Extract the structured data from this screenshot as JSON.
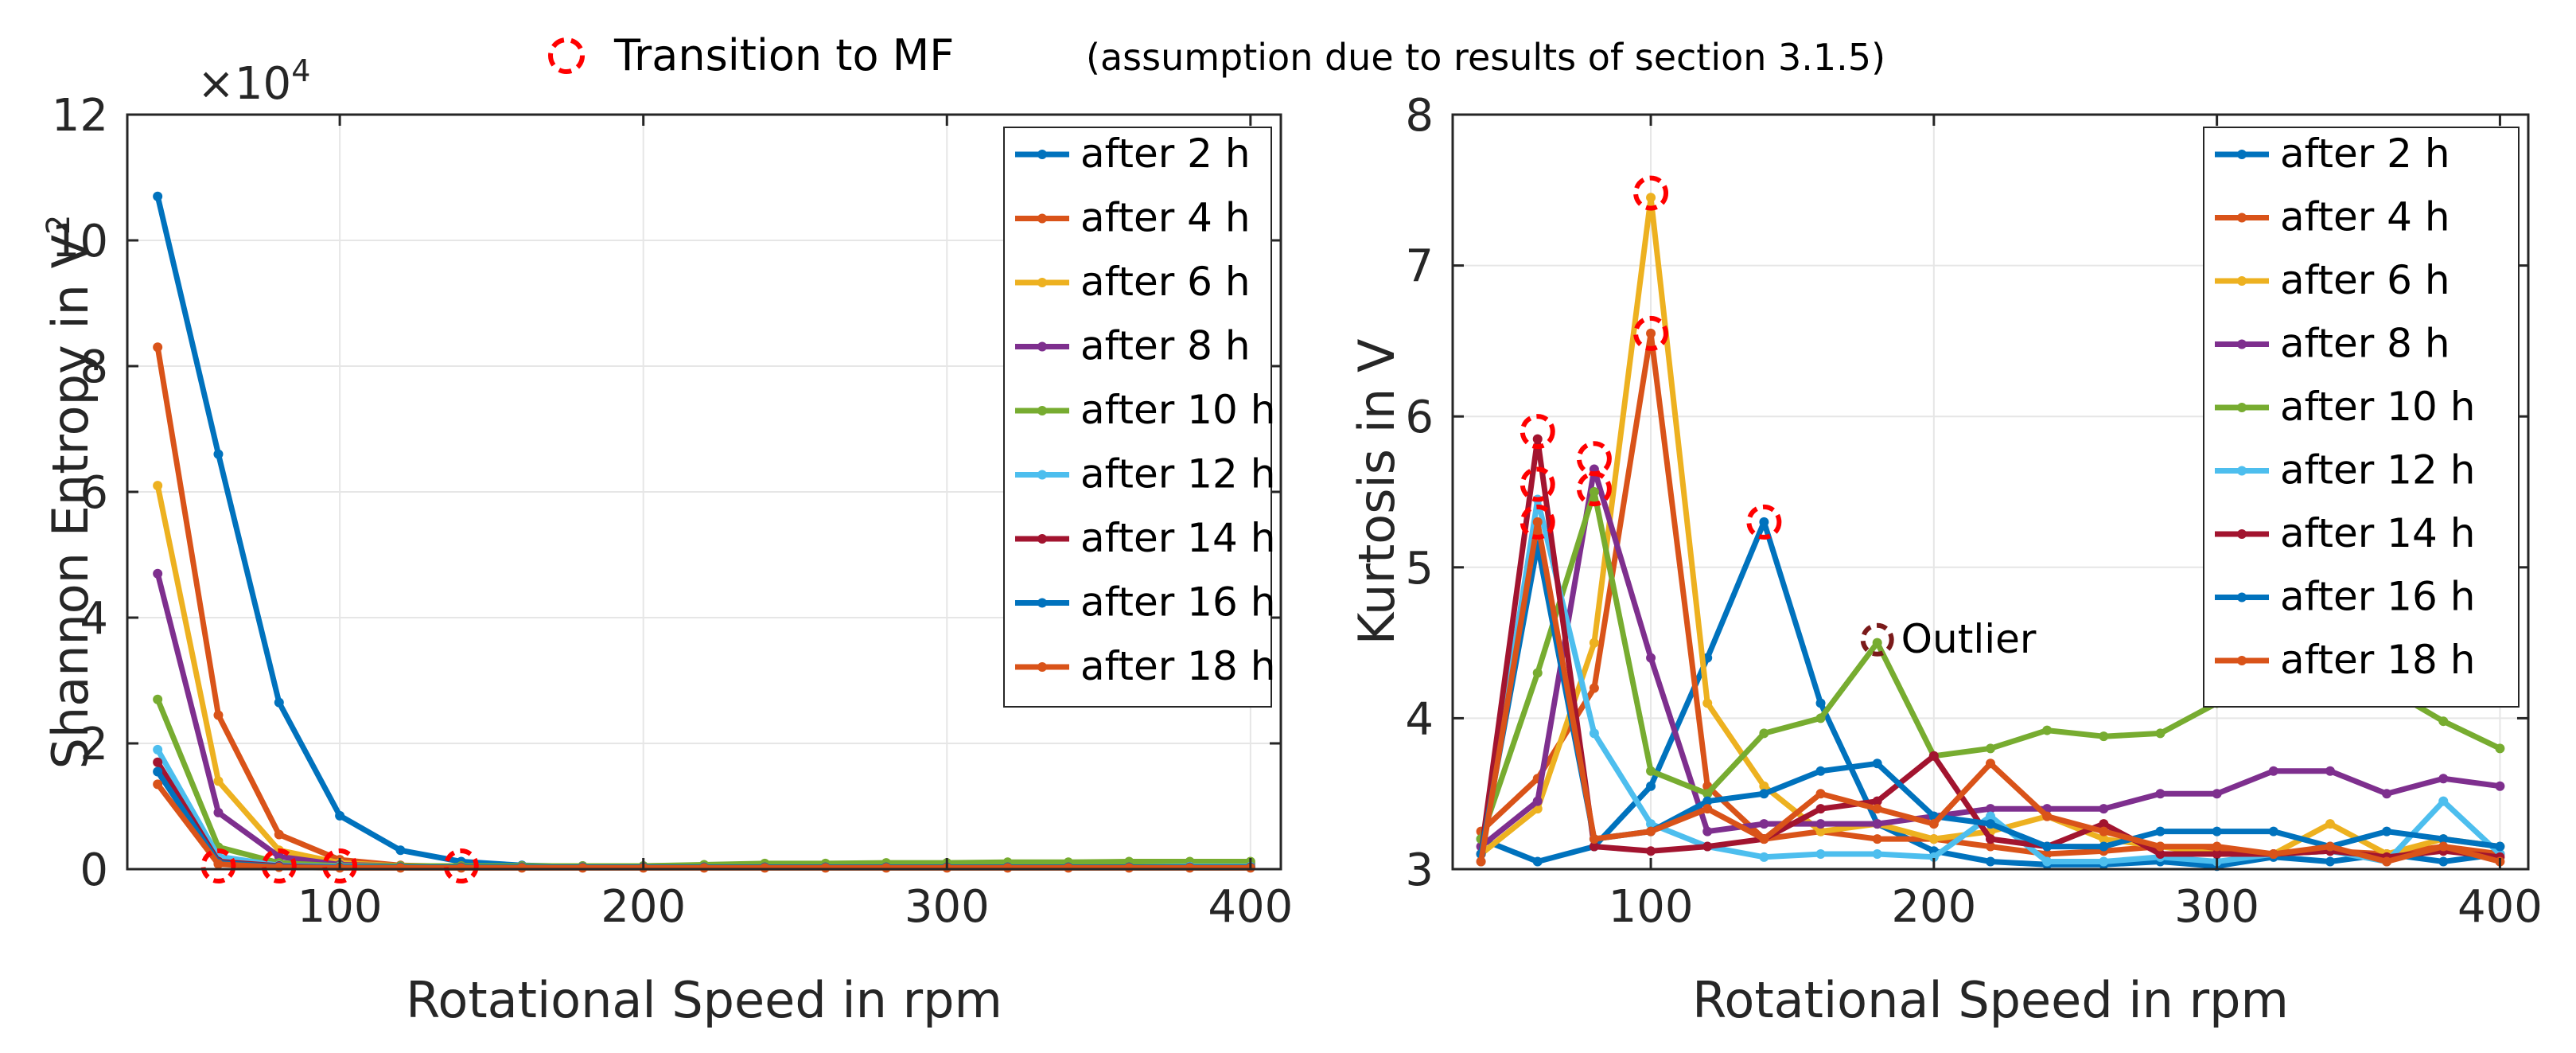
{
  "header": {
    "label": "Transition to MF",
    "note": "(assumption due to results of section 3.1.5)"
  },
  "colors": {
    "marker_ring": "#ff0000",
    "outlier_ring": "#7a1a1a",
    "axis": "#262626",
    "grid": "#e6e6e6"
  },
  "chart_data": [
    {
      "type": "line",
      "xlabel": "Rotational Speed in rpm",
      "ylabel_prefix": "Shannon Entropy in V",
      "ylabel_sup": "2",
      "exponent_label": "×10",
      "exponent_power": "4",
      "xlim": [
        30,
        410
      ],
      "ylim": [
        0,
        12
      ],
      "xticks": [
        100,
        200,
        300,
        400
      ],
      "xtick_labels": [
        "100",
        "200",
        "300",
        "400"
      ],
      "yticks": [
        0,
        2,
        4,
        6,
        8,
        10,
        12
      ],
      "ytick_labels": [
        "0",
        "2",
        "4",
        "6",
        "8",
        "10",
        "12"
      ],
      "grid": true,
      "legend_position": "top-right",
      "x": [
        40,
        60,
        80,
        100,
        120,
        140,
        160,
        180,
        200,
        220,
        240,
        260,
        280,
        300,
        320,
        340,
        360,
        380,
        400
      ],
      "series": [
        {
          "name": "after 2 h",
          "color": "#0072bd",
          "values": [
            10.7,
            6.6,
            2.65,
            0.85,
            0.3,
            0.12,
            0.06,
            0.04,
            0.03,
            0.03,
            0.04,
            0.04,
            0.05,
            0.05,
            0.05,
            0.05,
            0.05,
            0.05,
            0.05
          ]
        },
        {
          "name": "after 4 h",
          "color": "#d95319",
          "values": [
            8.3,
            2.45,
            0.55,
            0.15,
            0.06,
            0.04,
            0.03,
            0.03,
            0.03,
            0.03,
            0.03,
            0.03,
            0.03,
            0.03,
            0.03,
            0.03,
            0.03,
            0.03,
            0.03
          ]
        },
        {
          "name": "after 6 h",
          "color": "#edb120",
          "values": [
            6.1,
            1.4,
            0.3,
            0.1,
            0.05,
            0.04,
            0.03,
            0.03,
            0.04,
            0.05,
            0.06,
            0.06,
            0.07,
            0.07,
            0.07,
            0.07,
            0.07,
            0.07,
            0.07
          ]
        },
        {
          "name": "after 8 h",
          "color": "#7e2f8e",
          "values": [
            4.7,
            0.9,
            0.2,
            0.07,
            0.05,
            0.05,
            0.05,
            0.05,
            0.05,
            0.06,
            0.06,
            0.07,
            0.07,
            0.08,
            0.08,
            0.08,
            0.08,
            0.09,
            0.09
          ]
        },
        {
          "name": "after 10 h",
          "color": "#77ac30",
          "values": [
            2.7,
            0.35,
            0.1,
            0.05,
            0.05,
            0.05,
            0.05,
            0.05,
            0.05,
            0.07,
            0.09,
            0.09,
            0.1,
            0.1,
            0.11,
            0.11,
            0.12,
            0.12,
            0.12
          ]
        },
        {
          "name": "after 12 h",
          "color": "#4dbeee",
          "values": [
            1.9,
            0.2,
            0.06,
            0.04,
            0.03,
            0.03,
            0.03,
            0.03,
            0.03,
            0.03,
            0.03,
            0.03,
            0.03,
            0.03,
            0.03,
            0.03,
            0.03,
            0.04,
            0.04
          ]
        },
        {
          "name": "after 14 h",
          "color": "#a2142f",
          "values": [
            1.7,
            0.12,
            0.05,
            0.03,
            0.03,
            0.03,
            0.03,
            0.03,
            0.03,
            0.03,
            0.03,
            0.03,
            0.03,
            0.03,
            0.03,
            0.03,
            0.03,
            0.03,
            0.03
          ]
        },
        {
          "name": "after 16 h",
          "color": "#0072bd",
          "values": [
            1.55,
            0.1,
            0.04,
            0.03,
            0.03,
            0.03,
            0.03,
            0.03,
            0.03,
            0.03,
            0.03,
            0.03,
            0.03,
            0.03,
            0.03,
            0.03,
            0.03,
            0.03,
            0.03
          ]
        },
        {
          "name": "after 18 h",
          "color": "#d95319",
          "values": [
            1.35,
            0.08,
            0.03,
            0.02,
            0.02,
            0.02,
            0.02,
            0.02,
            0.02,
            0.02,
            0.02,
            0.02,
            0.02,
            0.02,
            0.02,
            0.02,
            0.02,
            0.02,
            0.02
          ]
        }
      ],
      "transition_markers": [
        {
          "x": 60,
          "y": 0.05
        },
        {
          "x": 80,
          "y": 0.05
        },
        {
          "x": 100,
          "y": 0.05
        },
        {
          "x": 140,
          "y": 0.05
        }
      ]
    },
    {
      "type": "line",
      "xlabel": "Rotational Speed in rpm",
      "ylabel": "Kurtosis in V",
      "xlim": [
        30,
        410
      ],
      "ylim": [
        3,
        8
      ],
      "xticks": [
        100,
        200,
        300,
        400
      ],
      "xtick_labels": [
        "100",
        "200",
        "300",
        "400"
      ],
      "yticks": [
        3,
        4,
        5,
        6,
        7,
        8
      ],
      "ytick_labels": [
        "3",
        "4",
        "5",
        "6",
        "7",
        "8"
      ],
      "grid": true,
      "legend_position": "top-right",
      "x": [
        40,
        60,
        80,
        100,
        120,
        140,
        160,
        180,
        200,
        220,
        240,
        260,
        280,
        300,
        320,
        340,
        360,
        380,
        400
      ],
      "series": [
        {
          "name": "after 2 h",
          "color": "#0072bd",
          "values": [
            3.2,
            3.05,
            3.15,
            3.55,
            4.4,
            5.3,
            4.1,
            3.3,
            3.12,
            3.05,
            3.03,
            3.03,
            3.05,
            3.02,
            3.08,
            3.05,
            3.1,
            3.05,
            3.1
          ]
        },
        {
          "name": "after 4 h",
          "color": "#d95319",
          "values": [
            3.25,
            3.6,
            4.2,
            6.55,
            3.55,
            3.2,
            3.25,
            3.2,
            3.2,
            3.15,
            3.1,
            3.12,
            3.15,
            3.12,
            3.1,
            3.12,
            3.1,
            3.15,
            3.1
          ]
        },
        {
          "name": "after 6 h",
          "color": "#edb120",
          "values": [
            3.1,
            3.4,
            4.5,
            7.45,
            4.1,
            3.55,
            3.25,
            3.3,
            3.2,
            3.25,
            3.35,
            3.2,
            3.15,
            3.1,
            3.1,
            3.3,
            3.1,
            3.2,
            3.15
          ]
        },
        {
          "name": "after 8 h",
          "color": "#7e2f8e",
          "values": [
            3.15,
            3.45,
            5.65,
            4.4,
            3.25,
            3.3,
            3.3,
            3.3,
            3.35,
            3.4,
            3.4,
            3.4,
            3.5,
            3.5,
            3.65,
            3.65,
            3.5,
            3.6,
            3.55
          ]
        },
        {
          "name": "after 10 h",
          "color": "#77ac30",
          "values": [
            3.2,
            4.3,
            5.5,
            3.65,
            3.5,
            3.9,
            4.0,
            4.5,
            3.75,
            3.8,
            3.92,
            3.88,
            3.9,
            4.1,
            4.12,
            4.18,
            4.2,
            3.98,
            3.8
          ]
        },
        {
          "name": "after 12 h",
          "color": "#4dbeee",
          "values": [
            3.05,
            5.45,
            3.9,
            3.3,
            3.15,
            3.08,
            3.1,
            3.1,
            3.08,
            3.35,
            3.05,
            3.05,
            3.08,
            3.05,
            3.1,
            3.12,
            3.05,
            3.45,
            3.1
          ]
        },
        {
          "name": "after 14 h",
          "color": "#a2142f",
          "values": [
            3.1,
            5.85,
            3.15,
            3.12,
            3.15,
            3.2,
            3.4,
            3.45,
            3.75,
            3.2,
            3.15,
            3.3,
            3.1,
            3.1,
            3.1,
            3.12,
            3.08,
            3.12,
            3.08
          ]
        },
        {
          "name": "after 16 h",
          "color": "#0072bd",
          "values": [
            3.1,
            5.15,
            3.2,
            3.25,
            3.45,
            3.5,
            3.65,
            3.7,
            3.35,
            3.3,
            3.15,
            3.15,
            3.25,
            3.25,
            3.25,
            3.15,
            3.25,
            3.2,
            3.15
          ]
        },
        {
          "name": "after 18 h",
          "color": "#d95319",
          "values": [
            3.05,
            5.3,
            3.2,
            3.25,
            3.4,
            3.2,
            3.5,
            3.4,
            3.3,
            3.7,
            3.35,
            3.25,
            3.15,
            3.15,
            3.1,
            3.15,
            3.05,
            3.15,
            3.05
          ]
        }
      ],
      "transition_markers": [
        {
          "x": 60,
          "y": 5.9
        },
        {
          "x": 60,
          "y": 5.55
        },
        {
          "x": 60,
          "y": 5.3
        },
        {
          "x": 80,
          "y": 5.72
        },
        {
          "x": 80,
          "y": 5.52
        },
        {
          "x": 100,
          "y": 7.48
        },
        {
          "x": 100,
          "y": 6.55
        },
        {
          "x": 140,
          "y": 5.3
        }
      ],
      "outlier": {
        "x": 180,
        "y": 4.52,
        "label": "Outlier"
      }
    }
  ]
}
